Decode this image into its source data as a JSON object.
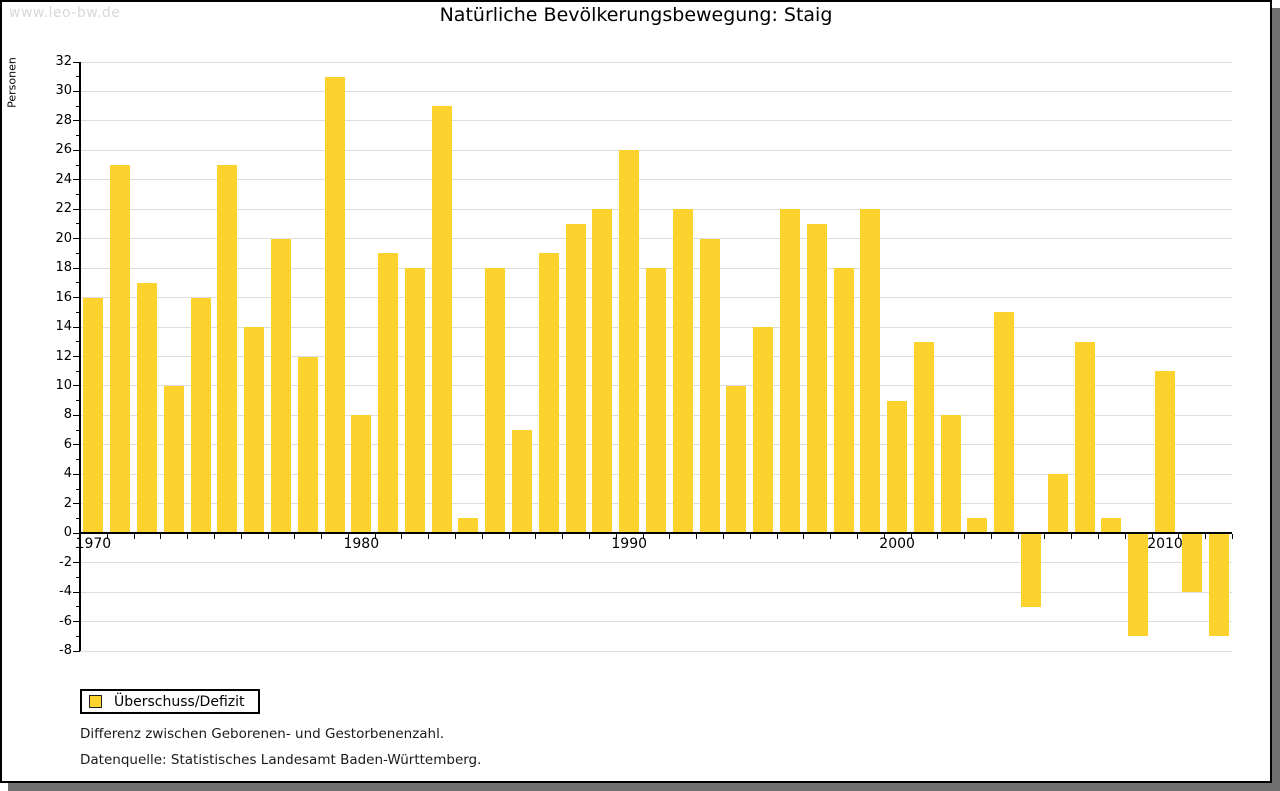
{
  "watermark": "www.leo-bw.de",
  "title": "Natürliche Bevölkerungsbewegung: Staig",
  "legend": {
    "label": "Überschuss/Defizit"
  },
  "notes": {
    "line1": "Differenz zwischen Geborenen- und Gestorbenenzahl.",
    "line2": "Datenquelle: Statistisches Landesamt Baden-Württemberg."
  },
  "colors": {
    "bar": "#FCD22E",
    "grid": "#DDDDDD",
    "axis": "#000000",
    "frame_shadow": "#707070",
    "watermark": "#D9D9D9"
  },
  "chart_data": {
    "type": "bar",
    "title": "Natürliche Bevölkerungsbewegung: Staig",
    "xlabel": "",
    "ylabel": "Personen",
    "ylim": [
      -8,
      32
    ],
    "ytick_step": 2,
    "grid": true,
    "legend_position": "bottom-left",
    "series_name": "Überschuss/Defizit",
    "x_tick_labels": [
      1970,
      1980,
      1990,
      2000,
      2010
    ],
    "categories": [
      1970,
      1971,
      1972,
      1973,
      1974,
      1975,
      1976,
      1977,
      1978,
      1979,
      1980,
      1981,
      1982,
      1983,
      1984,
      1985,
      1986,
      1987,
      1988,
      1989,
      1990,
      1991,
      1992,
      1993,
      1994,
      1995,
      1996,
      1997,
      1998,
      1999,
      2000,
      2001,
      2002,
      2003,
      2004,
      2005,
      2006,
      2007,
      2008,
      2009,
      2010,
      2011,
      2012
    ],
    "values": [
      16,
      25,
      17,
      10,
      16,
      25,
      14,
      20,
      12,
      31,
      8,
      19,
      18,
      29,
      1,
      18,
      7,
      19,
      21,
      22,
      26,
      18,
      22,
      20,
      10,
      14,
      22,
      21,
      18,
      22,
      9,
      13,
      8,
      1,
      15,
      -5,
      4,
      13,
      1,
      -7,
      11,
      -4,
      -7
    ]
  }
}
